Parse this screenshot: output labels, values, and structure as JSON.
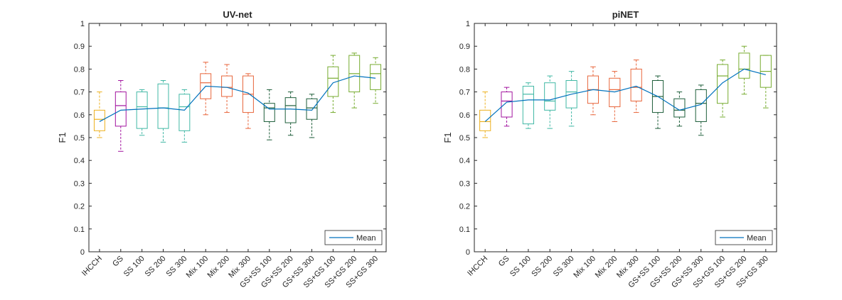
{
  "chart_data": [
    {
      "type": "box",
      "title": "UV-net",
      "xlabel": "",
      "ylabel": "F1",
      "ylim": [
        0,
        1
      ],
      "yticks": [
        "0",
        "0.1",
        "0.2",
        "0.3",
        "0.4",
        "0.5",
        "0.6",
        "0.7",
        "0.8",
        "0.9",
        "1"
      ],
      "grid": false,
      "legend": {
        "position": "bottom-right",
        "entries": [
          "Mean"
        ]
      },
      "categories": [
        "IHCCH",
        "GS",
        "SS 100",
        "SS 200",
        "SS 300",
        "Mix 100",
        "Mix 200",
        "Mix 300",
        "GS+SS 100",
        "GS+SS 200",
        "GS+SS 300",
        "SS+GS 100",
        "SS+GS 200",
        "SS+GS 300"
      ],
      "boxes": [
        {
          "min": 0.5,
          "q1": 0.53,
          "median": 0.58,
          "q3": 0.62,
          "max": 0.7
        },
        {
          "min": 0.44,
          "q1": 0.55,
          "median": 0.64,
          "q3": 0.7,
          "max": 0.75
        },
        {
          "min": 0.51,
          "q1": 0.54,
          "median": 0.635,
          "q3": 0.7,
          "max": 0.71
        },
        {
          "min": 0.48,
          "q1": 0.54,
          "median": 0.63,
          "q3": 0.735,
          "max": 0.75
        },
        {
          "min": 0.48,
          "q1": 0.53,
          "median": 0.635,
          "q3": 0.69,
          "max": 0.71
        },
        {
          "min": 0.6,
          "q1": 0.67,
          "median": 0.74,
          "q3": 0.78,
          "max": 0.83
        },
        {
          "min": 0.61,
          "q1": 0.68,
          "median": 0.72,
          "q3": 0.77,
          "max": 0.82
        },
        {
          "min": 0.54,
          "q1": 0.61,
          "median": 0.69,
          "q3": 0.77,
          "max": 0.78
        },
        {
          "min": 0.49,
          "q1": 0.57,
          "median": 0.63,
          "q3": 0.65,
          "max": 0.71
        },
        {
          "min": 0.51,
          "q1": 0.565,
          "median": 0.64,
          "q3": 0.675,
          "max": 0.7
        },
        {
          "min": 0.5,
          "q1": 0.58,
          "median": 0.63,
          "q3": 0.67,
          "max": 0.69
        },
        {
          "min": 0.61,
          "q1": 0.68,
          "median": 0.76,
          "q3": 0.81,
          "max": 0.86
        },
        {
          "min": 0.63,
          "q1": 0.7,
          "median": 0.78,
          "q3": 0.86,
          "max": 0.87
        },
        {
          "min": 0.65,
          "q1": 0.71,
          "median": 0.78,
          "q3": 0.82,
          "max": 0.85
        }
      ],
      "mean": [
        0.57,
        0.62,
        0.625,
        0.63,
        0.62,
        0.725,
        0.72,
        0.695,
        0.625,
        0.625,
        0.62,
        0.74,
        0.77,
        0.76
      ]
    },
    {
      "type": "box",
      "title": "piNET",
      "xlabel": "",
      "ylabel": "F1",
      "ylim": [
        0,
        1
      ],
      "yticks": [
        "0",
        "0.1",
        "0.2",
        "0.3",
        "0.4",
        "0.5",
        "0.6",
        "0.7",
        "0.8",
        "0.9",
        "1"
      ],
      "grid": false,
      "legend": {
        "position": "bottom-right",
        "entries": [
          "Mean"
        ]
      },
      "categories": [
        "IHCCH",
        "GS",
        "SS 100",
        "SS 200",
        "SS 300",
        "Mix 100",
        "Mix 200",
        "Mix 300",
        "GS+SS 100",
        "GS+SS 200",
        "GS+SS 300",
        "SS+GS 100",
        "SS+GS 200",
        "SS+GS 300"
      ],
      "boxes": [
        {
          "min": 0.5,
          "q1": 0.53,
          "median": 0.57,
          "q3": 0.62,
          "max": 0.7
        },
        {
          "min": 0.55,
          "q1": 0.59,
          "median": 0.66,
          "q3": 0.7,
          "max": 0.72
        },
        {
          "min": 0.54,
          "q1": 0.56,
          "median": 0.69,
          "q3": 0.725,
          "max": 0.74
        },
        {
          "min": 0.54,
          "q1": 0.62,
          "median": 0.66,
          "q3": 0.74,
          "max": 0.77
        },
        {
          "min": 0.55,
          "q1": 0.63,
          "median": 0.7,
          "q3": 0.75,
          "max": 0.79
        },
        {
          "min": 0.6,
          "q1": 0.65,
          "median": 0.71,
          "q3": 0.77,
          "max": 0.81
        },
        {
          "min": 0.57,
          "q1": 0.635,
          "median": 0.71,
          "q3": 0.76,
          "max": 0.79
        },
        {
          "min": 0.61,
          "q1": 0.66,
          "median": 0.72,
          "q3": 0.8,
          "max": 0.84
        },
        {
          "min": 0.54,
          "q1": 0.61,
          "median": 0.68,
          "q3": 0.75,
          "max": 0.77
        },
        {
          "min": 0.55,
          "q1": 0.59,
          "median": 0.62,
          "q3": 0.67,
          "max": 0.7
        },
        {
          "min": 0.51,
          "q1": 0.57,
          "median": 0.65,
          "q3": 0.71,
          "max": 0.73
        },
        {
          "min": 0.59,
          "q1": 0.65,
          "median": 0.77,
          "q3": 0.82,
          "max": 0.84
        },
        {
          "min": 0.69,
          "q1": 0.76,
          "median": 0.8,
          "q3": 0.87,
          "max": 0.9
        },
        {
          "min": 0.63,
          "q1": 0.72,
          "median": 0.79,
          "q3": 0.86,
          "max": 0.86
        }
      ],
      "mean": [
        0.57,
        0.655,
        0.665,
        0.665,
        0.69,
        0.71,
        0.7,
        0.725,
        0.68,
        0.62,
        0.645,
        0.74,
        0.8,
        0.775
      ]
    }
  ],
  "colors": {
    "palette": [
      "#EDB120",
      "#A2149F",
      "#41B8A5",
      "#41B8A5",
      "#41B8A5",
      "#E8663C",
      "#E8663C",
      "#E8663C",
      "#1E5E3A",
      "#1E5E3A",
      "#1E5E3A",
      "#77AC30",
      "#77AC30",
      "#77AC30"
    ],
    "mean_line": "#0072BD",
    "axis": "#262626"
  }
}
